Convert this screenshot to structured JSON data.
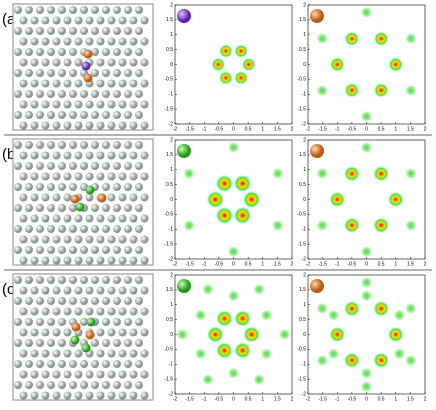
{
  "panels": [
    {
      "label": "(a)"
    },
    {
      "label": "(b)"
    },
    {
      "label": "(c)"
    }
  ],
  "axis": {
    "ticks": [
      -2,
      -1.5,
      -1,
      -0.5,
      0,
      0.5,
      1,
      1.5,
      2
    ]
  }
}
